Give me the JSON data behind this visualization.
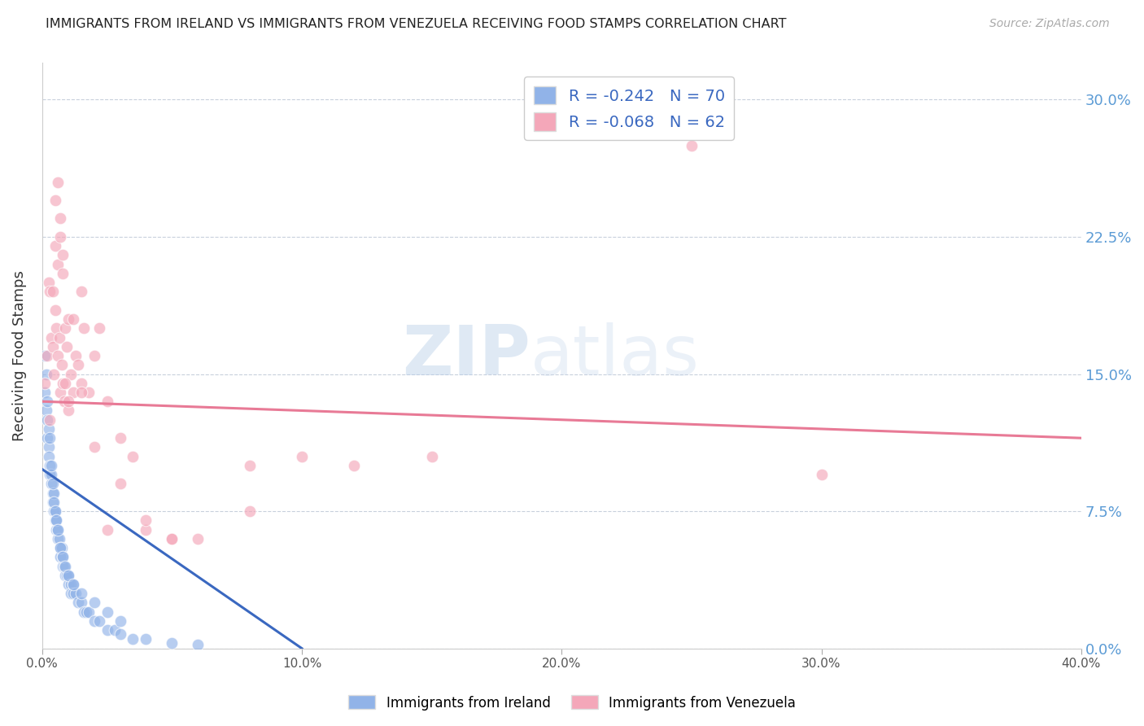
{
  "title": "IMMIGRANTS FROM IRELAND VS IMMIGRANTS FROM VENEZUELA RECEIVING FOOD STAMPS CORRELATION CHART",
  "source": "Source: ZipAtlas.com",
  "ylabel": "Receiving Food Stamps",
  "ytick_values": [
    0.0,
    7.5,
    15.0,
    22.5,
    30.0
  ],
  "xlim": [
    0.0,
    40.0
  ],
  "ylim": [
    0.0,
    32.0
  ],
  "ireland_R": -0.242,
  "ireland_N": 70,
  "venezuela_R": -0.068,
  "venezuela_N": 62,
  "ireland_color": "#91b3e8",
  "venezuela_color": "#f4a7b9",
  "ireland_line_color": "#3a68c0",
  "venezuela_line_color": "#e87a96",
  "watermark_zip": "ZIP",
  "watermark_atlas": "atlas",
  "background_color": "#ffffff",
  "grid_color": "#c8d0dc",
  "ireland_scatter_x": [
    0.1,
    0.15,
    0.2,
    0.2,
    0.25,
    0.25,
    0.3,
    0.3,
    0.35,
    0.35,
    0.4,
    0.4,
    0.45,
    0.45,
    0.5,
    0.5,
    0.55,
    0.55,
    0.6,
    0.6,
    0.65,
    0.7,
    0.7,
    0.75,
    0.8,
    0.8,
    0.85,
    0.9,
    0.95,
    1.0,
    1.0,
    1.1,
    1.1,
    1.2,
    1.2,
    1.3,
    1.4,
    1.5,
    1.6,
    1.7,
    1.8,
    2.0,
    2.2,
    2.5,
    2.8,
    3.0,
    3.5,
    4.0,
    5.0,
    6.0,
    0.1,
    0.15,
    0.2,
    0.25,
    0.3,
    0.35,
    0.4,
    0.45,
    0.5,
    0.55,
    0.6,
    0.7,
    0.8,
    0.9,
    1.0,
    1.2,
    1.5,
    2.0,
    2.5,
    3.0
  ],
  "ireland_scatter_y": [
    14.0,
    13.0,
    12.5,
    11.5,
    11.0,
    10.5,
    10.0,
    9.5,
    9.0,
    9.5,
    8.5,
    8.0,
    8.5,
    7.5,
    7.0,
    7.5,
    7.0,
    6.5,
    6.0,
    6.5,
    6.0,
    5.5,
    5.0,
    5.5,
    5.0,
    4.5,
    4.5,
    4.0,
    4.0,
    3.5,
    4.0,
    3.5,
    3.0,
    3.5,
    3.0,
    3.0,
    2.5,
    2.5,
    2.0,
    2.0,
    2.0,
    1.5,
    1.5,
    1.0,
    1.0,
    0.8,
    0.5,
    0.5,
    0.3,
    0.2,
    16.0,
    15.0,
    13.5,
    12.0,
    11.5,
    10.0,
    9.0,
    8.0,
    7.5,
    7.0,
    6.5,
    5.5,
    5.0,
    4.5,
    4.0,
    3.5,
    3.0,
    2.5,
    2.0,
    1.5
  ],
  "venezuela_scatter_x": [
    0.1,
    0.2,
    0.25,
    0.3,
    0.35,
    0.4,
    0.45,
    0.5,
    0.55,
    0.6,
    0.65,
    0.7,
    0.75,
    0.8,
    0.85,
    0.9,
    0.95,
    1.0,
    1.1,
    1.2,
    1.3,
    1.4,
    1.5,
    1.6,
    1.8,
    2.0,
    2.2,
    2.5,
    3.0,
    3.5,
    4.0,
    5.0,
    6.0,
    8.0,
    10.0,
    15.0,
    25.0,
    30.0,
    0.3,
    0.4,
    0.5,
    0.6,
    0.7,
    0.8,
    0.9,
    1.0,
    1.2,
    1.5,
    2.0,
    3.0,
    5.0,
    8.0,
    12.0,
    20.0,
    0.5,
    0.6,
    0.7,
    0.8,
    1.0,
    1.5,
    2.5,
    4.0
  ],
  "venezuela_scatter_y": [
    14.5,
    16.0,
    20.0,
    19.5,
    17.0,
    16.5,
    15.0,
    18.5,
    17.5,
    16.0,
    17.0,
    14.0,
    15.5,
    14.5,
    13.5,
    17.5,
    16.5,
    18.0,
    15.0,
    14.0,
    16.0,
    15.5,
    19.5,
    17.5,
    14.0,
    16.0,
    17.5,
    13.5,
    11.5,
    10.5,
    6.5,
    6.0,
    6.0,
    10.0,
    10.5,
    10.5,
    27.5,
    9.5,
    12.5,
    19.5,
    22.0,
    21.0,
    22.5,
    20.5,
    14.5,
    13.0,
    18.0,
    14.5,
    11.0,
    9.0,
    6.0,
    7.5,
    10.0,
    28.5,
    24.5,
    25.5,
    23.5,
    21.5,
    13.5,
    14.0,
    6.5,
    7.0
  ],
  "ireland_trendline_x": [
    0.0,
    10.0
  ],
  "ireland_trendline_y": [
    9.8,
    0.0
  ],
  "venezuela_trendline_x": [
    0.0,
    40.0
  ],
  "venezuela_trendline_y": [
    13.5,
    11.5
  ]
}
